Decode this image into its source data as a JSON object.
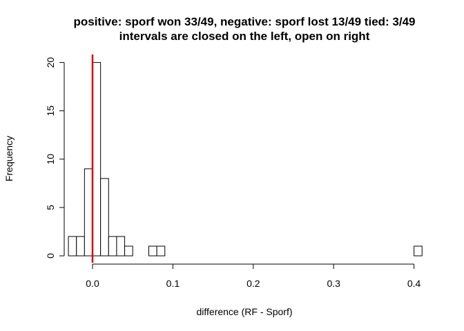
{
  "chart_data": {
    "type": "histogram",
    "title": "positive: sporf won 33/49, negative: sporf lost 13/49 tied: 3/49",
    "subtitle": "intervals are closed on the left, open on right",
    "xlabel": "difference (RF - Sporf)",
    "ylabel": "Frequency",
    "xlim": [
      -0.03,
      0.41
    ],
    "ylim": [
      0,
      20
    ],
    "x_ticks": [
      0.0,
      0.1,
      0.2,
      0.3,
      0.4
    ],
    "x_tick_labels": [
      "0.0",
      "0.1",
      "0.2",
      "0.3",
      "0.4"
    ],
    "y_ticks": [
      0,
      5,
      10,
      15,
      20
    ],
    "y_tick_labels": [
      "0",
      "5",
      "10",
      "15",
      "20"
    ],
    "bin_width": 0.01,
    "bin_start": -0.03,
    "counts": [
      2,
      2,
      9,
      20,
      8,
      2,
      2,
      1,
      0,
      0,
      1,
      1,
      0,
      0,
      0,
      0,
      0,
      0,
      0,
      0,
      0,
      0,
      0,
      0,
      0,
      0,
      0,
      0,
      0,
      0,
      0,
      0,
      0,
      0,
      0,
      0,
      0,
      0,
      0,
      0,
      0,
      0,
      0,
      1
    ],
    "reference_line": {
      "x": 0,
      "color": "#dd0000"
    },
    "bar_fill": "#ffffff",
    "bar_stroke": "#000000"
  }
}
